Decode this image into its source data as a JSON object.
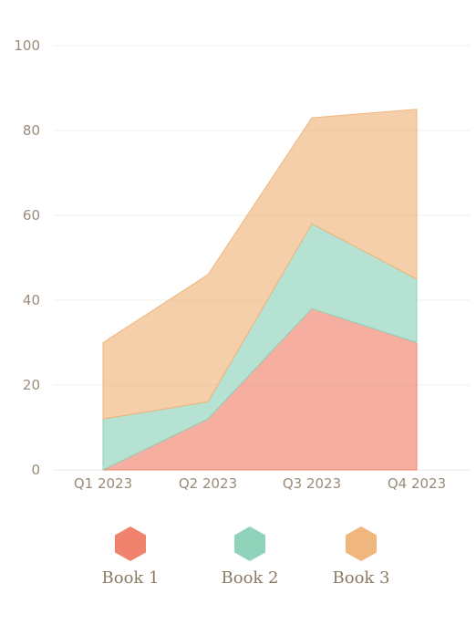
{
  "chart_data": {
    "type": "area",
    "stacked": true,
    "categories": [
      "Q1 2023",
      "Q2 2023",
      "Q3 2023",
      "Q4 2023"
    ],
    "series": [
      {
        "name": "Book 1",
        "values": [
          0,
          12,
          38,
          30
        ],
        "color": "#ef826d"
      },
      {
        "name": "Book 2",
        "values": [
          12,
          4,
          20,
          15
        ],
        "color": "#8fd3bb"
      },
      {
        "name": "Book 3",
        "values": [
          18,
          30,
          25,
          40
        ],
        "color": "#efb67d"
      }
    ],
    "ylim": [
      0,
      100
    ],
    "yticks": [
      "0",
      "20",
      "40",
      "60",
      "80",
      "100"
    ],
    "grid": true,
    "legend": "bottom",
    "legend_marker": "hexagon"
  }
}
